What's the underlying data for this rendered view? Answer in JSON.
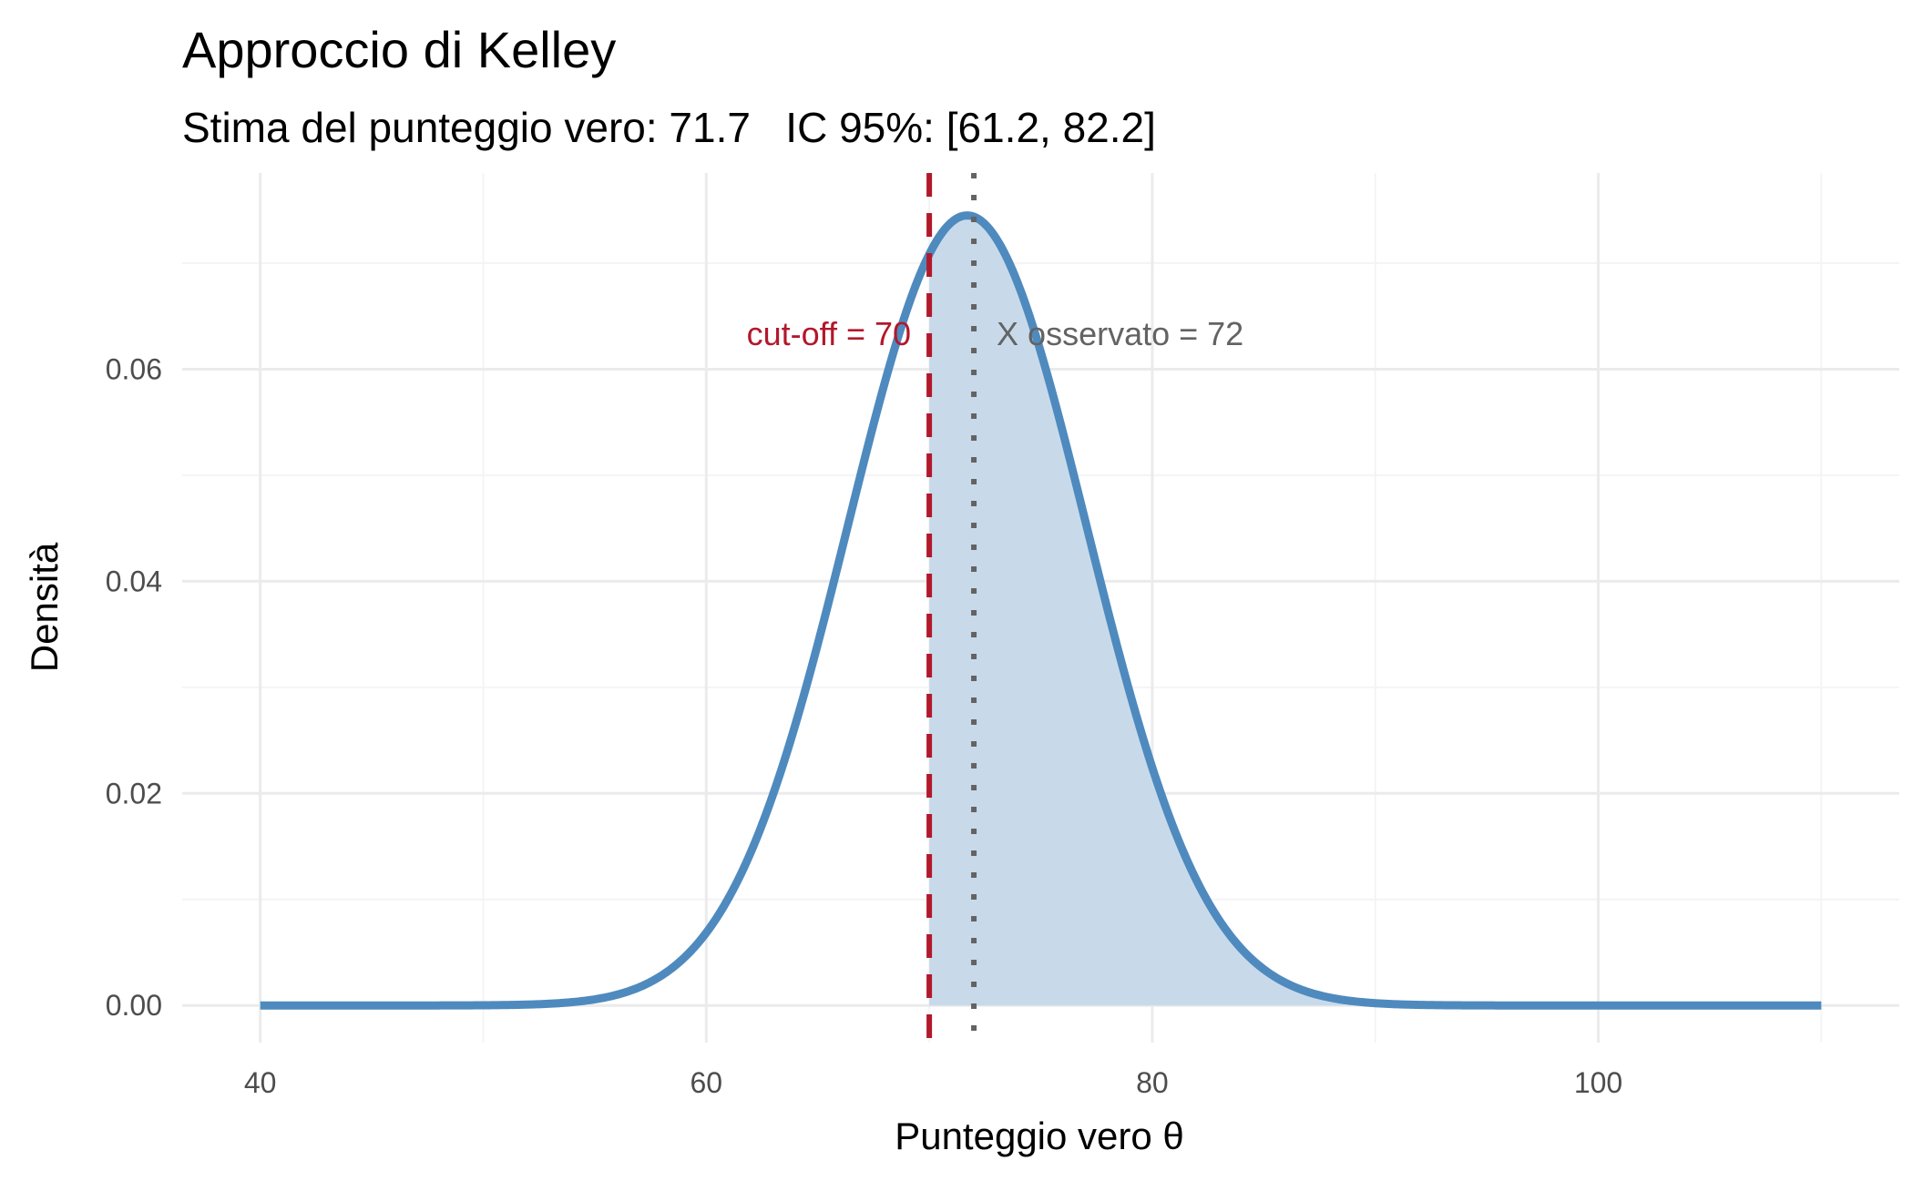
{
  "chart_data": {
    "type": "area",
    "title": "Approccio di Kelley",
    "subtitle": "Stima del punteggio vero: 71.7   IC 95%: [61.2, 82.2]",
    "xlabel": "Punteggio vero θ",
    "ylabel": "Densità",
    "xlim": [
      36.5,
      113.5
    ],
    "ylim": [
      -0.0035,
      0.0785
    ],
    "x_ticks": [
      40,
      60,
      80,
      100
    ],
    "x_tick_labels": [
      "40",
      "60",
      "80",
      "100"
    ],
    "y_ticks": [
      0,
      0.02,
      0.04,
      0.06
    ],
    "y_tick_labels": [
      "0.00",
      "0.02",
      "0.04",
      "0.06"
    ],
    "x_minor_ticks": [
      50,
      70,
      90,
      110
    ],
    "y_minor_ticks": [
      0.01,
      0.03,
      0.05,
      0.07
    ],
    "grid": true,
    "density": {
      "x_range": [
        40,
        110
      ],
      "mean": 71.7,
      "sd": 5.357,
      "peak_density": 0.0745
    },
    "shaded_region": {
      "from": 70,
      "to": 110
    },
    "reference_lines": [
      {
        "label": "cut-off = 70",
        "x": 70,
        "style": "dashed",
        "color": "#B2182B"
      },
      {
        "label": "X osservato = 72",
        "x": 72,
        "style": "dotted",
        "color": "#636363"
      }
    ],
    "colors": {
      "curve": "#4F8ABE",
      "fill": "#C8DAEA",
      "grid_major": "#EBEBEB",
      "grid_minor": "#F4F4F4"
    }
  }
}
